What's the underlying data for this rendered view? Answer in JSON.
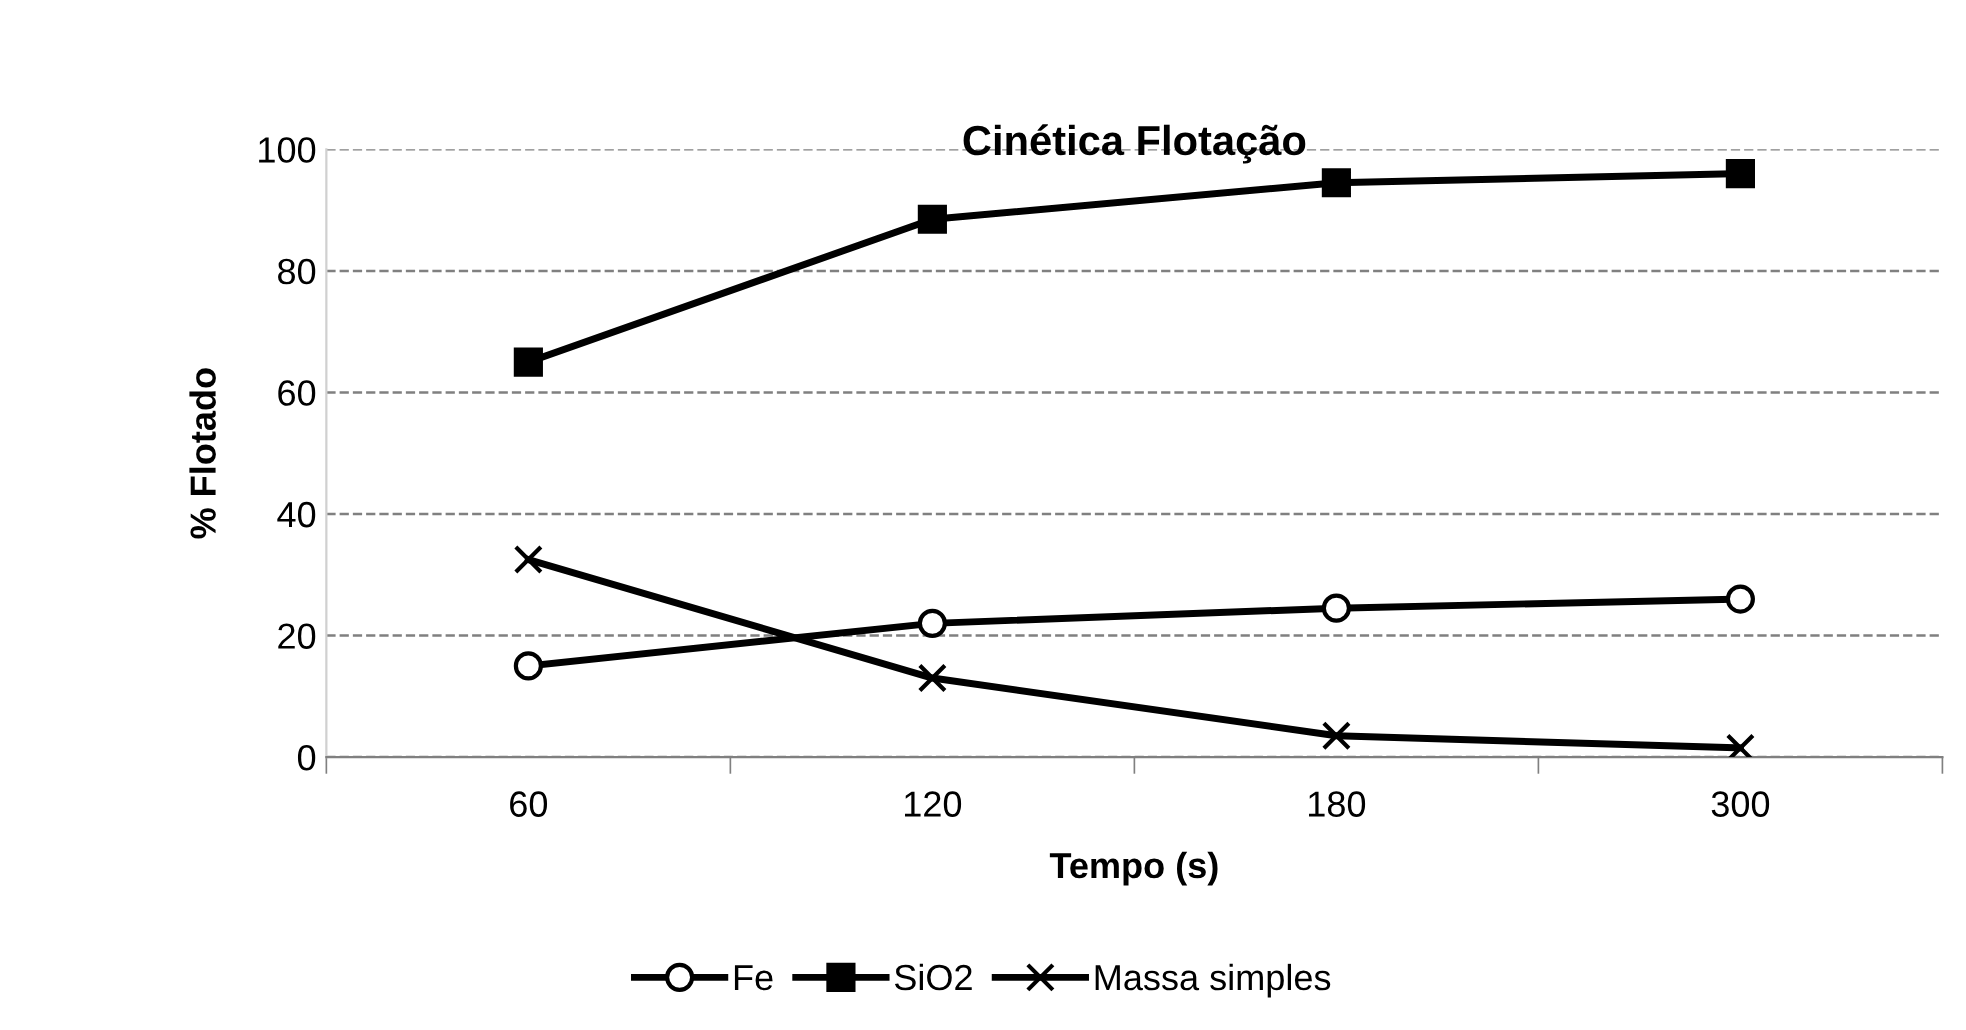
{
  "chart_data": {
    "type": "line",
    "title": "Cinética Flotação",
    "xlabel": "Tempo (s)",
    "ylabel": "% Flotado",
    "categories": [
      "60",
      "120",
      "180",
      "300"
    ],
    "series": [
      {
        "name": "Fe",
        "color": "#000000",
        "marker": "circle",
        "values": [
          15,
          22,
          24.5,
          26
        ]
      },
      {
        "name": "SiO2",
        "color": "#000000",
        "marker": "square",
        "values": [
          65,
          88.5,
          94.5,
          96
        ]
      },
      {
        "name": "Massa simples",
        "color": "#000000",
        "marker": "cross",
        "values": [
          32.5,
          13,
          3.5,
          1.5
        ]
      }
    ],
    "ylim": [
      0,
      100
    ],
    "yticks": [
      0,
      20,
      40,
      60,
      80,
      100
    ],
    "grid": "y",
    "legend": "bottom",
    "line_style": "solid"
  }
}
